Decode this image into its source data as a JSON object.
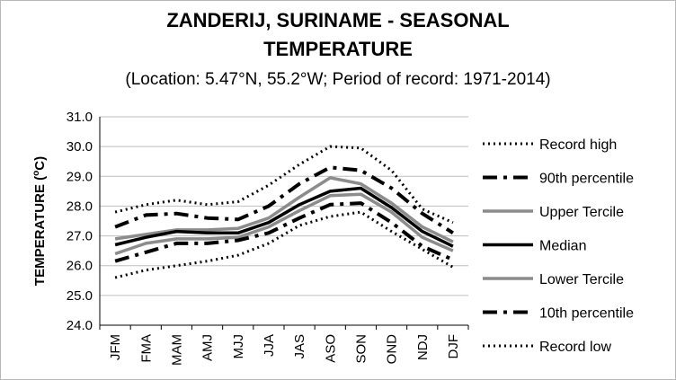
{
  "chart_data": {
    "type": "line",
    "title_line1": "ZANDERIJ, SURINAME - SEASONAL",
    "title_line2": "TEMPERATURE",
    "subtitle": "(Location: 5.47°N, 55.2°W; Period of record: 1971-2014)",
    "ylabel": "TEMPERATURE (",
    "ylabel_unit": "o",
    "ylabel_end": "C)",
    "xlabel": "",
    "ylim": [
      24.0,
      31.0
    ],
    "yticks": [
      "24.0",
      "25.0",
      "26.0",
      "27.0",
      "28.0",
      "29.0",
      "30.0",
      "31.0"
    ],
    "categories": [
      "JFM",
      "FMA",
      "MAM",
      "AMJ",
      "MJJ",
      "JJA",
      "JAS",
      "ASO",
      "SON",
      "OND",
      "NDJ",
      "DJF"
    ],
    "grid": true,
    "legend_position": "right",
    "series": [
      {
        "name": "Record high",
        "style": "dotted",
        "color": "#000000",
        "values": [
          27.8,
          28.05,
          28.2,
          28.05,
          28.15,
          28.7,
          29.4,
          30.0,
          29.95,
          29.2,
          27.9,
          27.45
        ]
      },
      {
        "name": "90th percentile",
        "style": "dashdot",
        "color": "#000000",
        "values": [
          27.3,
          27.7,
          27.75,
          27.6,
          27.55,
          28.0,
          28.75,
          29.3,
          29.2,
          28.6,
          27.75,
          27.1
        ]
      },
      {
        "name": "Upper Tercile",
        "style": "solid",
        "color": "#8c8c8c",
        "values": [
          26.9,
          27.05,
          27.2,
          27.2,
          27.25,
          27.6,
          28.3,
          28.95,
          28.75,
          28.1,
          27.3,
          26.8
        ]
      },
      {
        "name": "Median",
        "style": "solid",
        "color": "#000000",
        "values": [
          26.7,
          26.95,
          27.15,
          27.1,
          27.1,
          27.45,
          28.05,
          28.5,
          28.6,
          27.95,
          27.15,
          26.65
        ]
      },
      {
        "name": "Lower Tercile",
        "style": "solid",
        "color": "#8c8c8c",
        "values": [
          26.4,
          26.75,
          26.9,
          26.9,
          26.95,
          27.3,
          27.85,
          28.35,
          28.4,
          27.8,
          26.95,
          26.5
        ]
      },
      {
        "name": "10th percentile",
        "style": "dashdot",
        "color": "#000000",
        "values": [
          26.15,
          26.45,
          26.75,
          26.75,
          26.85,
          27.1,
          27.6,
          28.05,
          28.1,
          27.45,
          26.65,
          26.2
        ]
      },
      {
        "name": "Record low",
        "style": "dotted",
        "color": "#000000",
        "values": [
          25.6,
          25.85,
          26.0,
          26.15,
          26.35,
          26.75,
          27.35,
          27.65,
          27.8,
          27.15,
          26.55,
          25.95
        ]
      }
    ]
  }
}
